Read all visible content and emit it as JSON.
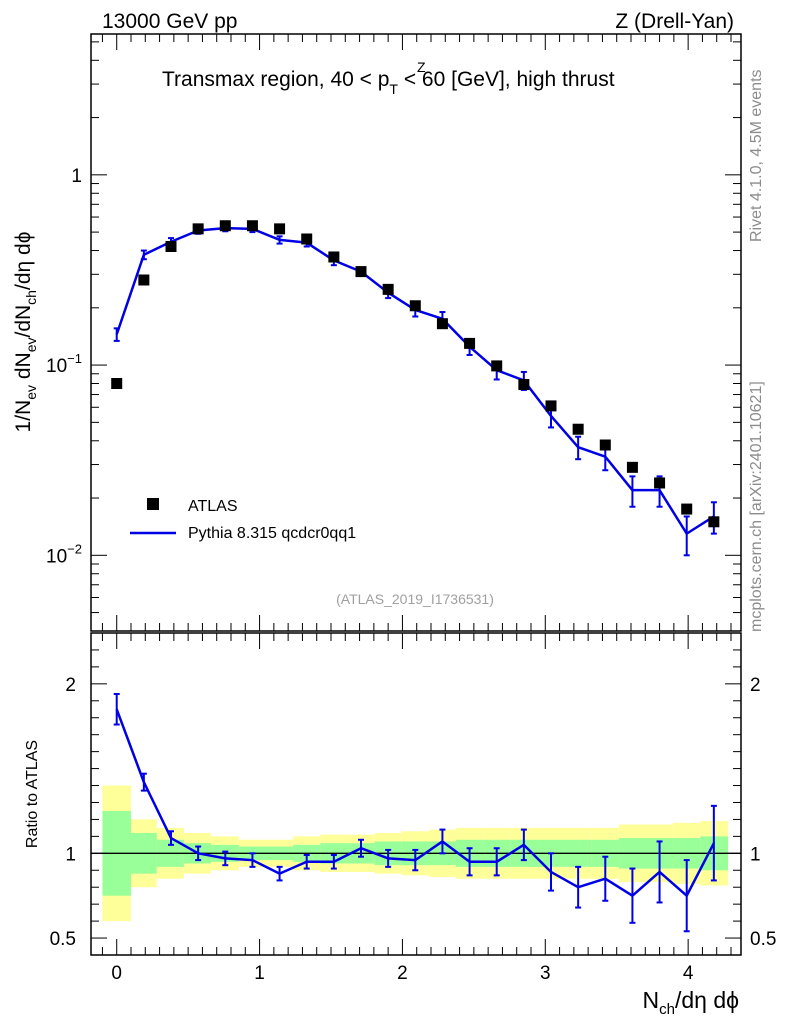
{
  "header": {
    "left": "13000 GeV pp",
    "right": "Z (Drell-Yan)"
  },
  "side_labels": {
    "rivet": "Rivet 4.1.0,  4.5M events",
    "mcplots": "mcplots.cern.ch [arXiv:2401.10621]"
  },
  "chart_data": {
    "type": "scatter",
    "title_parts": {
      "before": "Transmax region, 40 < p",
      "sup": "Z",
      "sub": "T",
      "after": " < 60 [GeV], high thrust"
    },
    "watermark": "(ATLAS_2019_I1736531)",
    "xlabel_parts": {
      "main": "N",
      "sub": "ch",
      "rest": "/dη dϕ"
    },
    "ylabel_parts": [
      "1/N",
      "ev",
      " dN",
      "ev",
      "/dN",
      "ch",
      "/dη dϕ"
    ],
    "ratio_ylabel": "Ratio to ATLAS",
    "xlim": [
      -0.18,
      4.37
    ],
    "ylim": [
      0.004,
      5.5
    ],
    "yscale": "log",
    "ratio_ylim": [
      0.4,
      2.3
    ],
    "x_ticks": [
      0,
      1,
      2,
      3,
      4
    ],
    "x_tick_labels": [
      "0",
      "1",
      "2",
      "3",
      "4"
    ],
    "y_ticks": [
      0.01,
      0.1,
      1
    ],
    "y_tick_label_parts": [
      {
        "base": "10",
        "exp": "−2"
      },
      {
        "base": "10",
        "exp": "−1"
      },
      {
        "base": "1",
        "exp": ""
      }
    ],
    "ratio_ticks": [
      0.5,
      1,
      2
    ],
    "ratio_tick_labels": [
      "0.5",
      "1",
      "2"
    ],
    "legend": {
      "position": "lower-left",
      "entries": [
        "ATLAS",
        "Pythia 8.315 qcdcr0qq1"
      ]
    },
    "colors": {
      "data": "#000000",
      "mc": "#0000e6",
      "band_inner": "#99ff99",
      "band_outer": "#ffff99",
      "frame": "#000000",
      "side_text": "#8c8c8c",
      "watermark": "#a0a0a0"
    },
    "x": [
      0.0,
      0.19,
      0.38,
      0.57,
      0.76,
      0.95,
      1.14,
      1.33,
      1.52,
      1.71,
      1.9,
      2.09,
      2.28,
      2.47,
      2.66,
      2.85,
      3.04,
      3.23,
      3.42,
      3.61,
      3.8,
      3.99,
      4.18
    ],
    "bin_edges": [
      -0.1,
      0.1,
      0.28,
      0.47,
      0.66,
      0.855,
      1.045,
      1.235,
      1.425,
      1.615,
      1.805,
      1.995,
      2.185,
      2.375,
      2.565,
      2.755,
      2.945,
      3.135,
      3.325,
      3.515,
      3.705,
      3.895,
      4.085,
      4.28
    ],
    "series": [
      {
        "name": "ATLAS",
        "style": "markers",
        "values": [
          0.08,
          0.28,
          0.42,
          0.52,
          0.54,
          0.54,
          0.52,
          0.46,
          0.37,
          0.31,
          0.25,
          0.205,
          0.165,
          0.13,
          0.099,
          0.079,
          0.061,
          0.046,
          0.038,
          0.029,
          0.024,
          0.0175,
          0.015
        ]
      },
      {
        "name": "Pythia 8.315 qcdcr0qq1",
        "style": "line",
        "values": [
          0.145,
          0.38,
          0.445,
          0.51,
          0.525,
          0.52,
          0.455,
          0.44,
          0.355,
          0.31,
          0.24,
          0.195,
          0.175,
          0.125,
          0.094,
          0.083,
          0.054,
          0.037,
          0.033,
          0.022,
          0.022,
          0.013,
          0.016
        ],
        "errors": [
          0.011,
          0.02,
          0.02,
          0.02,
          0.02,
          0.02,
          0.02,
          0.02,
          0.02,
          0.015,
          0.015,
          0.015,
          0.015,
          0.012,
          0.01,
          0.009,
          0.007,
          0.005,
          0.005,
          0.004,
          0.004,
          0.003,
          0.003
        ]
      }
    ],
    "ratio": {
      "values": [
        1.85,
        1.42,
        1.09,
        1.0,
        0.97,
        0.96,
        0.88,
        0.95,
        0.95,
        1.03,
        0.97,
        0.96,
        1.07,
        0.95,
        0.95,
        1.05,
        0.89,
        0.8,
        0.85,
        0.75,
        0.89,
        0.75,
        1.06
      ],
      "errors": [
        0.09,
        0.05,
        0.04,
        0.04,
        0.04,
        0.04,
        0.04,
        0.04,
        0.04,
        0.05,
        0.05,
        0.06,
        0.07,
        0.08,
        0.08,
        0.09,
        0.11,
        0.12,
        0.13,
        0.16,
        0.18,
        0.21,
        0.22
      ],
      "band_inner": [
        0.25,
        0.12,
        0.08,
        0.06,
        0.05,
        0.04,
        0.04,
        0.05,
        0.06,
        0.06,
        0.07,
        0.07,
        0.07,
        0.08,
        0.08,
        0.08,
        0.08,
        0.08,
        0.08,
        0.09,
        0.09,
        0.09,
        0.1
      ],
      "band_outer": [
        0.4,
        0.2,
        0.15,
        0.12,
        0.1,
        0.08,
        0.08,
        0.1,
        0.11,
        0.11,
        0.12,
        0.13,
        0.14,
        0.15,
        0.15,
        0.15,
        0.15,
        0.15,
        0.15,
        0.17,
        0.17,
        0.18,
        0.19
      ]
    }
  }
}
